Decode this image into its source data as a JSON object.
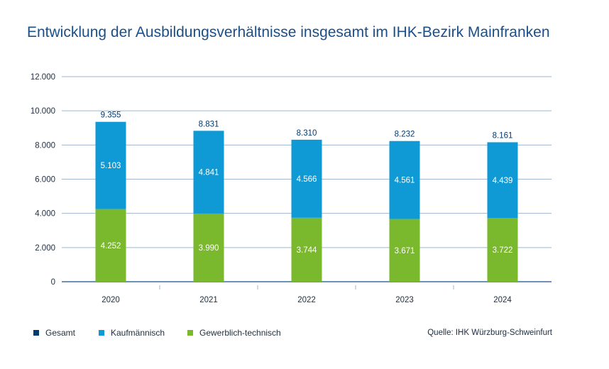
{
  "chart_data": {
    "type": "bar",
    "stacked": true,
    "title": "Entwicklung der Ausbildungsverhältnisse insgesamt im IHK-Bezirk Mainfranken",
    "categories": [
      "2020",
      "2021",
      "2022",
      "2023",
      "2024"
    ],
    "series": [
      {
        "name": "Gewerblich-technisch",
        "values": [
          4252,
          3990,
          3744,
          3671,
          3722
        ],
        "labels": [
          "4.252",
          "3.990",
          "3.744",
          "3.671",
          "3.722"
        ],
        "color": "#7ab82d"
      },
      {
        "name": "Kaufmännisch",
        "values": [
          5103,
          4841,
          4566,
          4561,
          4439
        ],
        "labels": [
          "5.103",
          "4.841",
          "4.566",
          "4.561",
          "4.439"
        ],
        "color": "#0f9ad6"
      }
    ],
    "totals": {
      "name": "Gesamt",
      "values": [
        9355,
        8831,
        8310,
        8232,
        8161
      ],
      "labels": [
        "9.355",
        "8.831",
        "8.310",
        "8.232",
        "8.161"
      ],
      "color": "#003a70"
    },
    "ylim": [
      0,
      12000
    ],
    "yticks": [
      0,
      2000,
      4000,
      6000,
      8000,
      10000,
      12000
    ],
    "ytick_labels": [
      "0",
      "2.000",
      "4.000",
      "6.000",
      "8.000",
      "10.000",
      "12.000"
    ],
    "grid": true,
    "legend_position": "bottom-left"
  },
  "legend": [
    {
      "label": "Gesamt",
      "color": "#003a70"
    },
    {
      "label": "Kaufmännisch",
      "color": "#0f9ad6"
    },
    {
      "label": "Gewerblich-technisch",
      "color": "#7ab82d"
    }
  ],
  "source": "Quelle: IHK Würzburg-Schweinfurt",
  "colors": {
    "title": "#1a4f8a",
    "grid": "#9fb6cc",
    "axis": "#1a4f8a",
    "text": "#1f2d3d"
  }
}
